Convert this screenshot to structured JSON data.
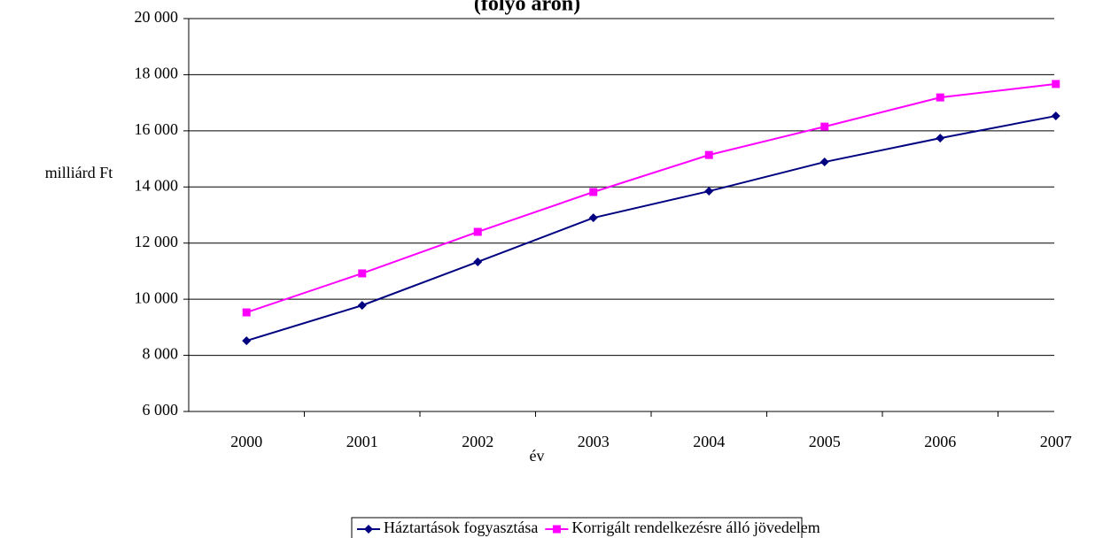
{
  "chart_data": {
    "type": "line",
    "title": "(folyó áron)",
    "y_label": "milliárd Ft",
    "x_label": "év",
    "categories": [
      "2000",
      "2001",
      "2002",
      "2003",
      "2004",
      "2005",
      "2006",
      "2007"
    ],
    "series": [
      {
        "name": "Háztartások fogyasztása",
        "color": "#000080",
        "marker": "diamond",
        "values": [
          8520,
          9780,
          11330,
          12900,
          13850,
          14890,
          15740,
          16530
        ]
      },
      {
        "name": "Korrigált rendelkezésre álló jövedelem",
        "color": "#ff00ff",
        "marker": "square",
        "values": [
          9530,
          10920,
          12400,
          13820,
          15140,
          16150,
          17190,
          17670
        ]
      }
    ],
    "ylim": [
      6000,
      20000
    ],
    "yticks": [
      {
        "value": 6000,
        "label": "6 000"
      },
      {
        "value": 8000,
        "label": "8 000"
      },
      {
        "value": 10000,
        "label": "10 000"
      },
      {
        "value": 12000,
        "label": "12 000"
      },
      {
        "value": 14000,
        "label": "14 000"
      },
      {
        "value": 16000,
        "label": "16 000"
      },
      {
        "value": 18000,
        "label": "18 000"
      },
      {
        "value": 20000,
        "label": "20 000"
      }
    ],
    "grid": true,
    "legend": "bottom"
  }
}
